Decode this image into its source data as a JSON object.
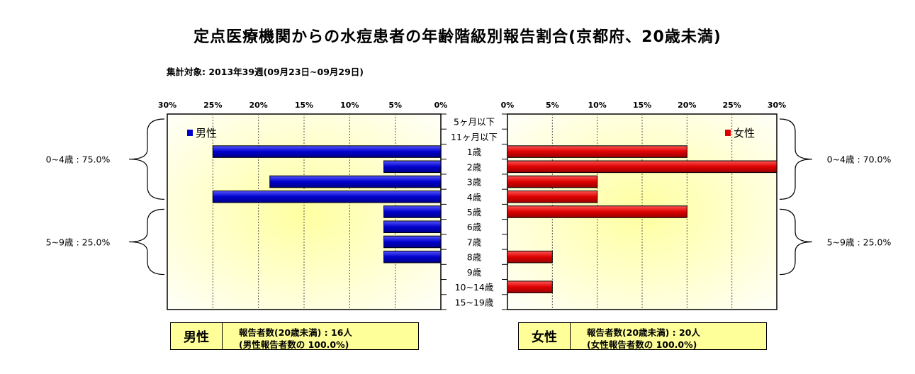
{
  "title": "定点医療機関からの水痘患者の年齢階級別報告割合(京都府、20歳未満)",
  "subtitle": "集計対象: 2013年39週(09月23日~09月29日)",
  "colors": {
    "male": "#0000cc",
    "female": "#dd0000",
    "plot_bg": "#ffffcc",
    "box_bg": "#ffff99"
  },
  "chart_data": {
    "type": "bar",
    "orientation": "horizontal-butterfly",
    "categories": [
      "5ヶ月以下",
      "11ヶ月以下",
      "1歳",
      "2歳",
      "3歳",
      "4歳",
      "5歳",
      "6歳",
      "7歳",
      "8歳",
      "9歳",
      "10~14歳",
      "15~19歳"
    ],
    "xlim": [
      0,
      30
    ],
    "xticks": [
      "0%",
      "5%",
      "10%",
      "15%",
      "20%",
      "25%",
      "30%"
    ],
    "series": [
      {
        "name": "男性",
        "side": "left",
        "values": [
          0,
          0,
          25,
          6.25,
          18.75,
          25,
          6.25,
          6.25,
          6.25,
          6.25,
          0,
          0,
          0
        ]
      },
      {
        "name": "女性",
        "side": "right",
        "values": [
          0,
          0,
          20,
          30,
          10,
          10,
          20,
          0,
          0,
          5,
          0,
          5,
          0
        ]
      }
    ],
    "groups": [
      {
        "label": "0~4歳 : 75.0%",
        "side": "left",
        "from": 0,
        "to": 5
      },
      {
        "label": "5~9歳 : 25.0%",
        "side": "left",
        "from": 6,
        "to": 10
      },
      {
        "label": "0~4歳 : 70.0%",
        "side": "right",
        "from": 0,
        "to": 5
      },
      {
        "label": "5~9歳 : 25.0%",
        "side": "right",
        "from": 6,
        "to": 10
      }
    ]
  },
  "summary": {
    "male": {
      "label": "男性",
      "line1": "報告者数(20歳未満) : 16人",
      "line2": "(男性報告者数の 100.0%)"
    },
    "female": {
      "label": "女性",
      "line1": "報告者数(20歳未満) : 20人",
      "line2": "(女性報告者数の 100.0%)"
    }
  }
}
